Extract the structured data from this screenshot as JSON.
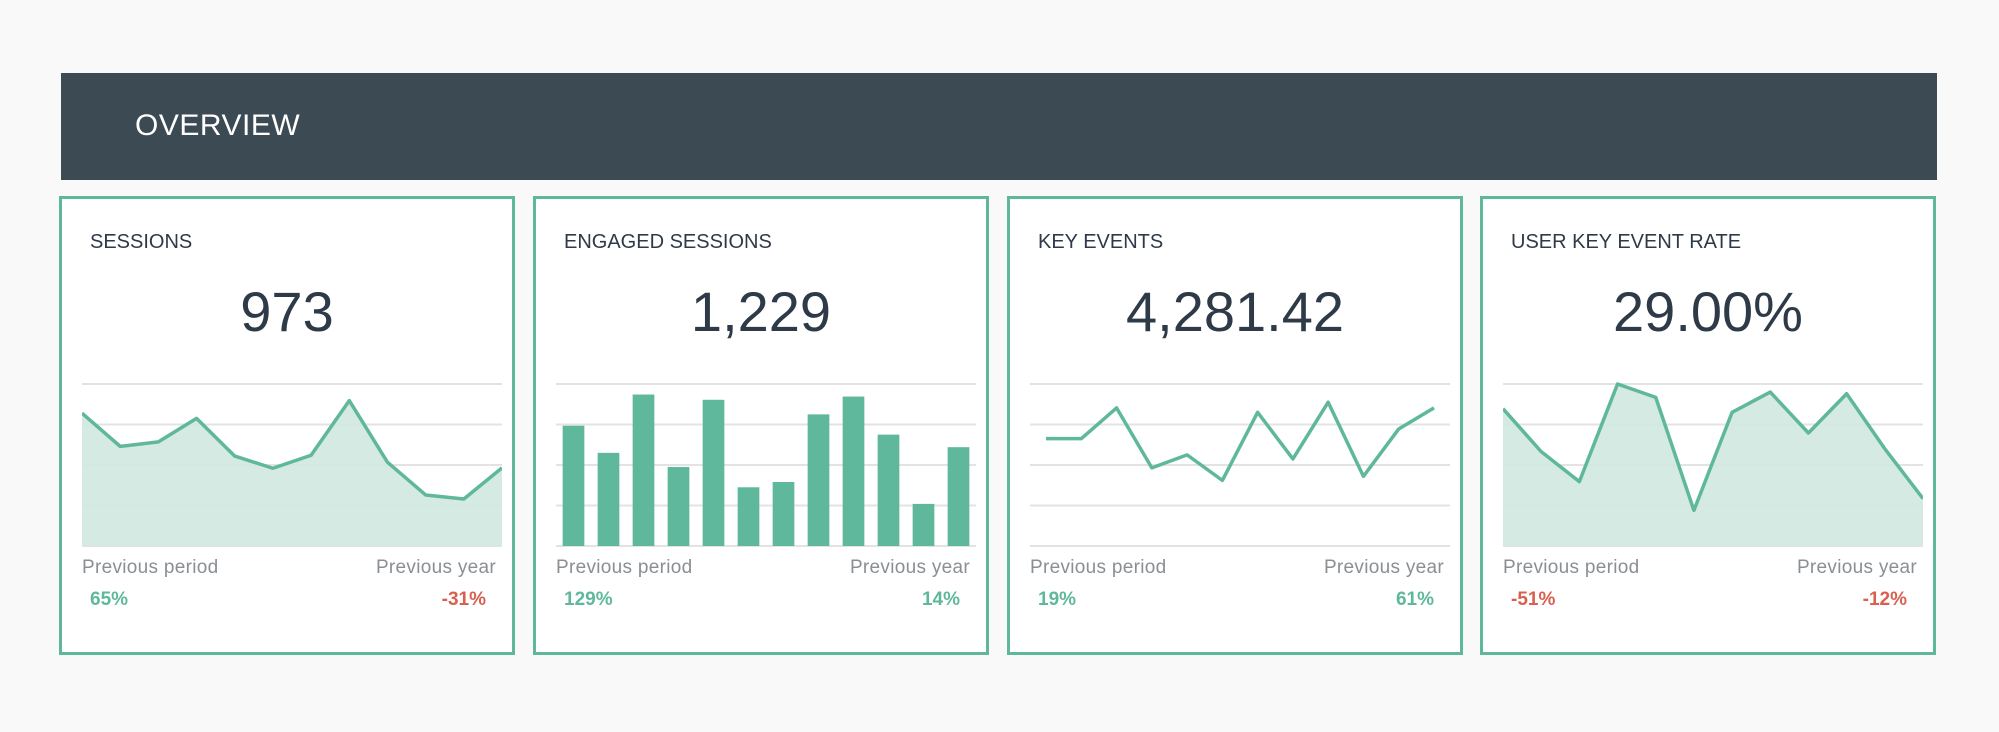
{
  "header": {
    "title": "OVERVIEW"
  },
  "colors": {
    "accent": "#5fb89c",
    "fill": "#cfe8df",
    "positive": "#5fb89c",
    "negative": "#d9604f",
    "header_bg": "#3c4a54"
  },
  "cards": [
    {
      "title": "SESSIONS",
      "value": "973",
      "prev_period_label": "Previous period",
      "prev_year_label": "Previous year",
      "prev_period": "65%",
      "prev_year": "-31%",
      "prev_period_trend": "positive",
      "prev_year_trend": "negative"
    },
    {
      "title": "ENGAGED SESSIONS",
      "value": "1,229",
      "prev_period_label": "Previous period",
      "prev_year_label": "Previous year",
      "prev_period": "129%",
      "prev_year": "14%",
      "prev_period_trend": "positive",
      "prev_year_trend": "positive"
    },
    {
      "title": "KEY EVENTS",
      "value": "4,281.42",
      "prev_period_label": "Previous period",
      "prev_year_label": "Previous year",
      "prev_period": "19%",
      "prev_year": "61%",
      "prev_period_trend": "positive",
      "prev_year_trend": "positive"
    },
    {
      "title": "USER KEY EVENT RATE",
      "value": "29.00%",
      "prev_period_label": "Previous period",
      "prev_year_label": "Previous year",
      "prev_period": "-51%",
      "prev_year": "-12%",
      "prev_period_trend": "negative",
      "prev_year_trend": "negative"
    }
  ],
  "chart_data": [
    {
      "type": "area",
      "ylim": [
        0,
        4
      ],
      "grid": true,
      "values": [
        3.28,
        2.46,
        2.57,
        3.15,
        2.22,
        1.92,
        2.24,
        3.59,
        2.07,
        1.26,
        1.16,
        1.93
      ]
    },
    {
      "type": "bar",
      "ylim": [
        0,
        4
      ],
      "grid": true,
      "values": [
        2.97,
        2.3,
        3.74,
        1.95,
        3.61,
        1.45,
        1.58,
        3.25,
        3.69,
        2.75,
        1.04,
        2.44
      ]
    },
    {
      "type": "line",
      "ylim": [
        0,
        4
      ],
      "grid": true,
      "values": [
        2.65,
        2.65,
        3.41,
        1.93,
        2.25,
        1.62,
        3.3,
        2.15,
        3.55,
        1.72,
        2.89,
        3.41
      ]
    },
    {
      "type": "area",
      "ylim": [
        0,
        4
      ],
      "grid": true,
      "values": [
        3.39,
        2.33,
        1.59,
        4.0,
        3.67,
        0.88,
        3.3,
        3.8,
        2.79,
        3.76,
        2.4,
        1.17
      ]
    }
  ]
}
